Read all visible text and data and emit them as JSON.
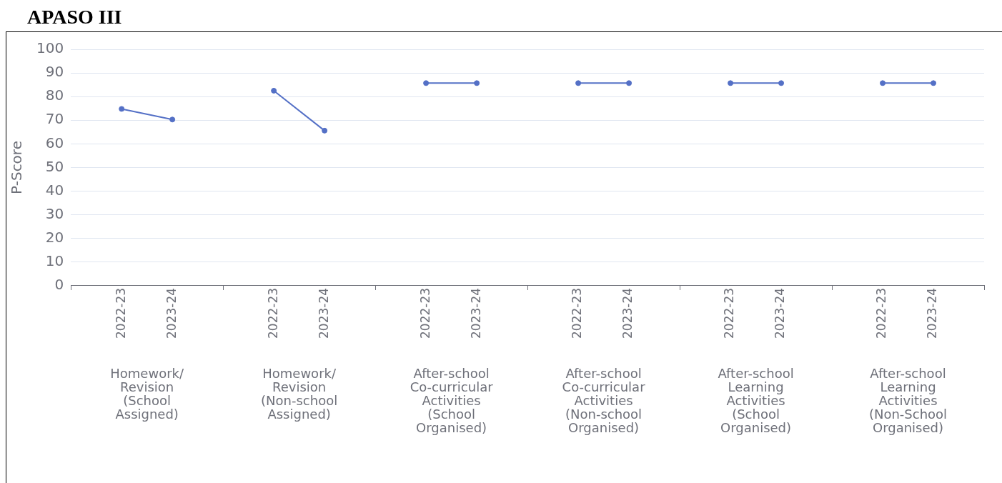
{
  "chart_data": {
    "type": "line",
    "title": "APASO III",
    "ylabel": "P-Score",
    "categories": [
      null,
      "2022-23",
      "2023-24",
      null,
      "2022-23",
      "2023-24",
      null,
      "2022-23",
      "2023-24",
      null,
      "2022-23",
      "2023-24",
      null,
      "2022-23",
      "2023-24",
      null,
      "2022-23",
      "2023-24",
      null
    ],
    "series": [
      {
        "color": "#5470c6",
        "values": [
          null,
          74.8,
          70.3,
          null,
          null,
          null,
          null,
          null,
          null,
          null,
          null,
          null,
          null,
          null,
          null,
          null,
          null,
          null,
          null
        ]
      },
      {
        "color": "#5470c6",
        "values": [
          null,
          null,
          null,
          null,
          82.5,
          65.6,
          null,
          null,
          null,
          null,
          null,
          null,
          null,
          null,
          null,
          null,
          null,
          null,
          null
        ]
      },
      {
        "color": "#5470c6",
        "values": [
          null,
          null,
          null,
          null,
          null,
          null,
          null,
          85.7,
          85.7,
          null,
          null,
          null,
          null,
          null,
          null,
          null,
          null,
          null,
          null
        ]
      },
      {
        "color": "#5470c6",
        "values": [
          null,
          null,
          null,
          null,
          null,
          null,
          null,
          null,
          null,
          null,
          85.7,
          85.7,
          null,
          null,
          null,
          null,
          null,
          null,
          null
        ]
      },
      {
        "color": "#5470c6",
        "values": [
          null,
          null,
          null,
          null,
          null,
          null,
          null,
          null,
          null,
          null,
          null,
          null,
          null,
          85.7,
          85.7,
          null,
          null,
          null,
          null
        ]
      },
      {
        "color": "#5470c6",
        "values": [
          null,
          null,
          null,
          null,
          null,
          null,
          null,
          null,
          null,
          null,
          null,
          null,
          null,
          null,
          null,
          null,
          85.7,
          85.7,
          null
        ]
      }
    ],
    "annotations": [
      "Homework/ Revision (School Assigned)",
      "Homework/ Revision (Non-school Assigned)",
      "After-school Co-curricular Activities (School Organised)",
      "After-school Co-curricular Activities (Non-school Organised)",
      "After-school Learning Activities (School Organised)",
      "After-school Learning Activities (Non-School Organised)"
    ],
    "ylim": [
      0,
      100
    ],
    "yticks": [
      0,
      10,
      20,
      30,
      40,
      50,
      60,
      70,
      80,
      90,
      100
    ],
    "grid": "y",
    "marker": "circle",
    "line_style": "solid",
    "legend": false
  }
}
